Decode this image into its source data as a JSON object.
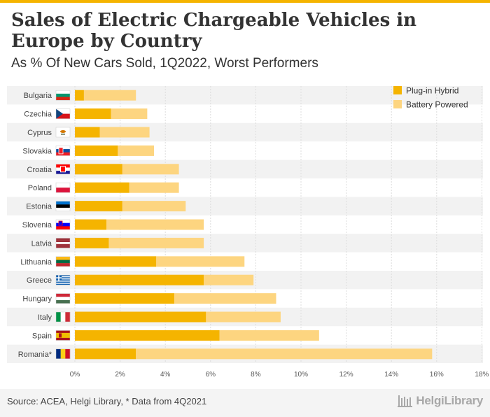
{
  "header": {
    "title": "Sales of Electric Chargeable Vehicles in Europe by Country",
    "subtitle": "As % Of New Cars Sold, 1Q2022, Worst Performers"
  },
  "footer": {
    "source": "Source: ACEA, Helgi Library, * Data from 4Q2021",
    "logo_text": "HelgiLibrary"
  },
  "colors": {
    "accent": "#f5b400",
    "plugin_hybrid": "#f5b400",
    "battery_powered": "#fdd580",
    "row_band": "#f2f2f2"
  },
  "chart_data": {
    "type": "bar",
    "orientation": "horizontal",
    "stacked": true,
    "categories": [
      "Bulgaria",
      "Czechia",
      "Cyprus",
      "Slovakia",
      "Croatia",
      "Poland",
      "Estonia",
      "Slovenia",
      "Latvia",
      "Lithuania",
      "Greece",
      "Hungary",
      "Italy",
      "Spain",
      "Romania*"
    ],
    "series": [
      {
        "name": "Plug-in Hybrid",
        "values": [
          0.4,
          1.6,
          1.1,
          1.9,
          2.1,
          2.4,
          2.1,
          1.4,
          1.5,
          3.6,
          5.7,
          4.4,
          5.8,
          6.4,
          2.7
        ]
      },
      {
        "name": "Battery Powered",
        "values": [
          2.3,
          1.6,
          2.2,
          1.6,
          2.5,
          2.2,
          2.8,
          4.3,
          4.2,
          3.9,
          2.2,
          4.5,
          3.3,
          4.4,
          13.1
        ]
      }
    ],
    "x_ticks": [
      "0%",
      "2%",
      "4%",
      "6%",
      "8%",
      "10%",
      "12%",
      "14%",
      "16%",
      "18%"
    ],
    "xlim": [
      0,
      18
    ],
    "legend_position": "top-right",
    "flags": [
      "bulgaria-flag",
      "czechia-flag",
      "cyprus-flag",
      "slovakia-flag",
      "croatia-flag",
      "poland-flag",
      "estonia-flag",
      "slovenia-flag",
      "latvia-flag",
      "lithuania-flag",
      "greece-flag",
      "hungary-flag",
      "italy-flag",
      "spain-flag",
      "romania-flag"
    ]
  }
}
